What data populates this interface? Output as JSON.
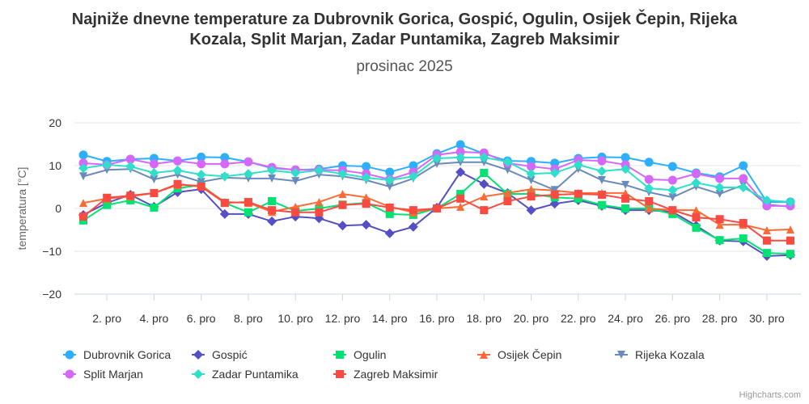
{
  "chart_data": {
    "type": "line",
    "title": "Najniže dnevne temperature za Dubrovnik Gorica, Gospić, Ogulin, Osijek Čepin, Rijeka Kozala, Split Marjan, Zadar Puntamika, Zagreb Maksimir",
    "subtitle": "prosinac 2025",
    "ylabel": "temperatura [°C]",
    "xlabel": "",
    "ylim": [
      -20,
      20
    ],
    "yticks": [
      20,
      10,
      0,
      -10,
      -20
    ],
    "x": [
      1,
      2,
      3,
      4,
      5,
      6,
      7,
      8,
      9,
      10,
      11,
      12,
      13,
      14,
      15,
      16,
      17,
      18,
      19,
      20,
      21,
      22,
      23,
      24,
      25,
      26,
      27,
      28,
      29,
      30,
      31
    ],
    "xtick_labels": [
      "2. pro",
      "4. pro",
      "6. pro",
      "8. pro",
      "10. pro",
      "12. pro",
      "14. pro",
      "16. pro",
      "18. pro",
      "20. pro",
      "22. pro",
      "24. pro",
      "26. pro",
      "28. pro",
      "30. pro"
    ],
    "grid": true,
    "legend_placement": "bottom",
    "series": [
      {
        "name": "Dubrovnik Gorica",
        "color": "#2caffe",
        "symbol": "circle",
        "values": [
          12.5,
          11,
          11.5,
          11.7,
          11.1,
          12,
          11.9,
          10.9,
          9.4,
          9,
          9.2,
          10,
          9.8,
          8.5,
          10,
          12.8,
          14.9,
          12.8,
          11.1,
          11,
          10.6,
          11.7,
          12,
          11.9,
          10.8,
          9.8,
          8.3,
          7.4,
          10,
          1.5,
          1.5
        ]
      },
      {
        "name": "Gospić",
        "color": "#544fc5",
        "symbol": "diamond",
        "values": [
          -1.5,
          1.3,
          3.2,
          0.4,
          3.8,
          4.5,
          -1.3,
          -1.3,
          -3,
          -1.9,
          -2.3,
          -4,
          -3.8,
          -5.8,
          -4.3,
          0.2,
          8.5,
          5.7,
          3.6,
          -0.4,
          1.1,
          1.9,
          0.6,
          -0.4,
          -0.4,
          -0.8,
          -4,
          -7.5,
          -7.7,
          -11.1,
          -10.9
        ]
      },
      {
        "name": "Ogulin",
        "color": "#00e272",
        "symbol": "square",
        "values": [
          -2.8,
          0.8,
          1.9,
          0.2,
          4.7,
          5.5,
          1.3,
          -0.9,
          1.7,
          -0.6,
          0,
          0.9,
          1.3,
          -1.3,
          -1.5,
          0,
          3.4,
          8.3,
          3.4,
          3.4,
          2.6,
          2.3,
          0.8,
          0,
          0,
          -1.3,
          -4.5,
          -7.4,
          -7,
          -10.4,
          -10.6
        ]
      },
      {
        "name": "Osijek Čepin",
        "color": "#fe6a35",
        "symbol": "triangle",
        "values": [
          1.3,
          2.3,
          2.8,
          3.6,
          5.5,
          5.3,
          1.5,
          1.3,
          -0.8,
          0.4,
          1.5,
          3.4,
          2.6,
          0.4,
          -0.9,
          0,
          0.4,
          2.8,
          3.6,
          4.5,
          4.2,
          3.6,
          3.6,
          3.6,
          0,
          -0.4,
          -0.4,
          -3.8,
          -3.8,
          -5.1,
          -4.9
        ]
      },
      {
        "name": "Rijeka Kozala",
        "color": "#6b8abc",
        "symbol": "triangle-down",
        "values": [
          7.5,
          9,
          9.2,
          6.8,
          7.9,
          6.2,
          7.2,
          7,
          7,
          6.4,
          7.9,
          7.5,
          6.6,
          5.1,
          7,
          10.4,
          10.8,
          10.8,
          9,
          6.6,
          4.3,
          9.2,
          6.6,
          5.5,
          3.8,
          2.6,
          5.1,
          3.4,
          5.5,
          0.9,
          0.4
        ]
      },
      {
        "name": "Split Marjan",
        "color": "#d568fb",
        "symbol": "circle",
        "values": [
          10.6,
          10.2,
          11.5,
          10.4,
          11.1,
          10.4,
          10.4,
          10.9,
          9.6,
          9,
          9,
          8.9,
          8.1,
          6.8,
          8.5,
          12.5,
          13.2,
          13,
          10.6,
          9.8,
          9.2,
          11.3,
          11.1,
          10.2,
          6.8,
          6.6,
          8.1,
          7,
          7,
          0.6,
          0.6
        ]
      },
      {
        "name": "Zadar Puntamika",
        "color": "#2ee0ca",
        "symbol": "diamond",
        "values": [
          9.4,
          10.2,
          9.8,
          8.3,
          8.9,
          7.9,
          7.5,
          8.1,
          8.9,
          8.3,
          8.9,
          8.1,
          7.2,
          6.6,
          7.5,
          11.7,
          11.9,
          11.9,
          10.9,
          8.1,
          8.3,
          10.2,
          8.7,
          9.2,
          4.7,
          4.3,
          6,
          4.9,
          4.9,
          1.9,
          1.5
        ]
      },
      {
        "name": "Zagreb Maksimir",
        "color": "#fa4b42",
        "symbol": "square",
        "values": [
          -1.9,
          2.5,
          3,
          3.6,
          5.7,
          5.1,
          1.3,
          1.5,
          -0.4,
          -0.9,
          -0.9,
          0.8,
          1.1,
          0.2,
          -0.4,
          0,
          2.3,
          -0.4,
          1.7,
          2.8,
          3.2,
          3.4,
          3.2,
          2.3,
          1.7,
          -0.4,
          -2.1,
          -2.5,
          -3.4,
          -7.5,
          -7.5
        ]
      }
    ]
  },
  "credits": "Highcharts.com"
}
